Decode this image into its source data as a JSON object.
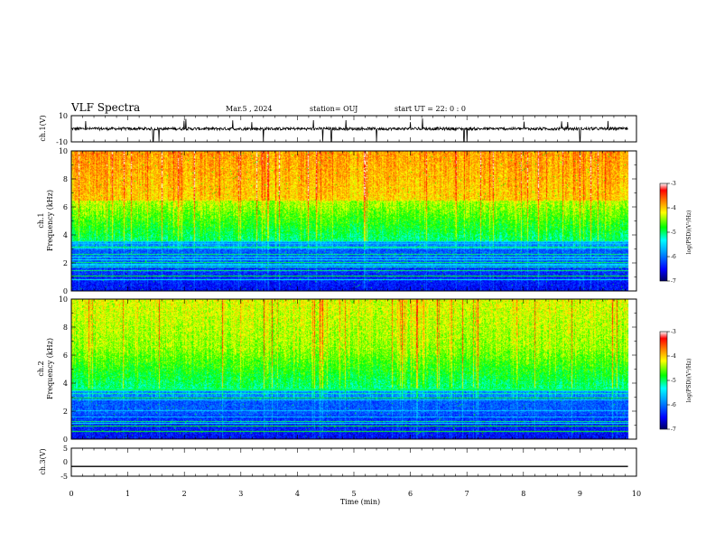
{
  "header": {
    "title": "VLF Spectra",
    "date": "Mar.5 , 2024",
    "station": "station= OUJ",
    "start": "start UT =  22: 0 : 0"
  },
  "chart_data": [
    {
      "type": "line",
      "panel": "ch1-waveform",
      "ylabel": "ch.1(V)",
      "ylim": [
        -10,
        10
      ],
      "yticks": [
        "10",
        "-10"
      ],
      "xlim": [
        0,
        10
      ],
      "baseline": 0,
      "description_values": "noisy signal around 0 V with occasional negative spikes down to about -10 V"
    },
    {
      "type": "heatmap",
      "panel": "ch1-spectrogram",
      "ylabel": "ch.1",
      "ylabel2": "Frequency (kHz)",
      "ylim": [
        0,
        10
      ],
      "yticks": [
        "0",
        "2",
        "4",
        "6",
        "8",
        "10"
      ],
      "xlim": [
        0,
        10
      ],
      "colorbar": {
        "label": "log(PSD)(V²/Hz)",
        "range": [
          -7,
          -3
        ],
        "ticks": [
          "-3",
          "-4",
          "-5",
          "-6",
          "-7"
        ]
      },
      "data_end_min": 9.85
    },
    {
      "type": "heatmap",
      "panel": "ch2-spectrogram",
      "ylabel": "ch.2",
      "ylabel2": "Frequency (kHz)",
      "ylim": [
        0,
        10
      ],
      "yticks": [
        "0",
        "2",
        "4",
        "6",
        "8",
        "10"
      ],
      "xlim": [
        0,
        10
      ],
      "colorbar": {
        "label": "log(PSD)(V²/Hz)",
        "range": [
          -7,
          -3
        ],
        "ticks": [
          "-3",
          "-4",
          "-5",
          "-6",
          "-7"
        ]
      },
      "data_end_min": 9.85
    },
    {
      "type": "line",
      "panel": "ch3-waveform",
      "ylabel": "ch.3(V)",
      "ylim": [
        -5,
        5
      ],
      "yticks": [
        "5",
        "0",
        "-5"
      ],
      "xlim": [
        0,
        10
      ],
      "constant_value": -1.5,
      "xlabel": "Time (min)",
      "xticks": [
        "0",
        "1",
        "2",
        "3",
        "4",
        "5",
        "6",
        "7",
        "8",
        "9",
        "10"
      ]
    }
  ],
  "colors": {
    "scale": [
      "#000060",
      "#0000ff",
      "#00a0ff",
      "#00ffff",
      "#00ff00",
      "#ffff00",
      "#ff8000",
      "#ff0000",
      "#ffffff"
    ]
  }
}
